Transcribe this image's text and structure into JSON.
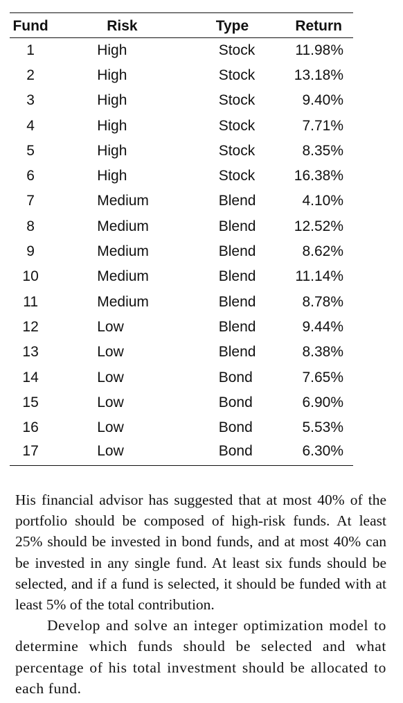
{
  "table": {
    "headers": {
      "fund": "Fund",
      "risk": "Risk",
      "type": "Type",
      "return": "Return"
    },
    "rows": [
      {
        "fund": "1",
        "risk": "High",
        "type": "Stock",
        "return": "11.98%"
      },
      {
        "fund": "2",
        "risk": "High",
        "type": "Stock",
        "return": "13.18%"
      },
      {
        "fund": "3",
        "risk": "High",
        "type": "Stock",
        "return": "9.40%"
      },
      {
        "fund": "4",
        "risk": "High",
        "type": "Stock",
        "return": "7.71%"
      },
      {
        "fund": "5",
        "risk": "High",
        "type": "Stock",
        "return": "8.35%"
      },
      {
        "fund": "6",
        "risk": "High",
        "type": "Stock",
        "return": "16.38%"
      },
      {
        "fund": "7",
        "risk": "Medium",
        "type": "Blend",
        "return": "4.10%"
      },
      {
        "fund": "8",
        "risk": "Medium",
        "type": "Blend",
        "return": "12.52%"
      },
      {
        "fund": "9",
        "risk": "Medium",
        "type": "Blend",
        "return": "8.62%"
      },
      {
        "fund": "10",
        "risk": "Medium",
        "type": "Blend",
        "return": "11.14%"
      },
      {
        "fund": "11",
        "risk": "Medium",
        "type": "Blend",
        "return": "8.78%"
      },
      {
        "fund": "12",
        "risk": "Low",
        "type": "Blend",
        "return": "9.44%"
      },
      {
        "fund": "13",
        "risk": "Low",
        "type": "Blend",
        "return": "8.38%"
      },
      {
        "fund": "14",
        "risk": "Low",
        "type": "Bond",
        "return": "7.65%"
      },
      {
        "fund": "15",
        "risk": "Low",
        "type": "Bond",
        "return": "6.90%"
      },
      {
        "fund": "16",
        "risk": "Low",
        "type": "Bond",
        "return": "5.53%"
      },
      {
        "fund": "17",
        "risk": "Low",
        "type": "Bond",
        "return": "6.30%"
      }
    ]
  },
  "text": {
    "paragraph1": "His financial advisor has suggested that at most 40% of the portfolio should be composed of high-risk funds. At least 25% should be invested in bond funds, and at most 40% can be invested in any single fund. At least six funds should be selected, and if a fund is selected, it should be funded with at least 5% of the total contribution.",
    "paragraph2": "Develop and solve an integer optimization model to determine which funds should be selected and what percentage of his total investment should be allocated to each fund."
  }
}
